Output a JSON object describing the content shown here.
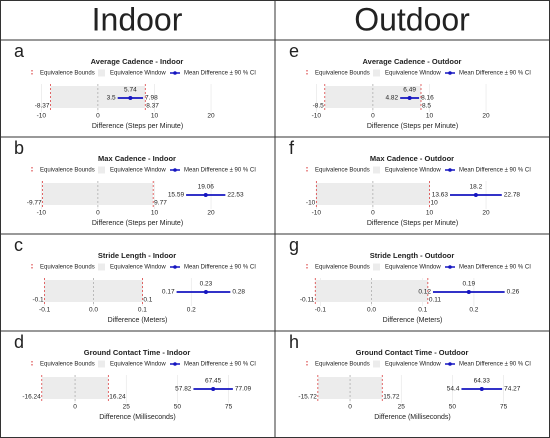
{
  "columns": [
    "Indoor",
    "Outdoor"
  ],
  "legend": [
    "Equivalence Bounds",
    "Equivalence Window",
    "Mean Difference ± 90 % CI"
  ],
  "chart_data": [
    {
      "type": "equivalence",
      "label": "a",
      "title": "Average Cadence - Indoor",
      "xlabel": "Difference (Steps per Minute)",
      "bounds": [
        -8.37,
        8.37
      ],
      "mean": 5.74,
      "ci": [
        3.5,
        7.98
      ],
      "xlim": [
        -12,
        26
      ],
      "xticks": [
        -10,
        0,
        10,
        20
      ],
      "colors": {
        "bounds": "#d62728",
        "ci": "#1515c0",
        "window": "#ececec"
      }
    },
    {
      "type": "equivalence",
      "label": "b",
      "title": "Max Cadence - Indoor",
      "xlabel": "Difference (Steps per Minute)",
      "bounds": [
        -9.77,
        9.77
      ],
      "mean": 19.06,
      "ci": [
        15.59,
        22.53
      ],
      "xlim": [
        -12,
        26
      ],
      "xticks": [
        -10,
        0,
        10,
        20
      ],
      "colors": {
        "bounds": "#d62728",
        "ci": "#1515c0",
        "window": "#ececec"
      }
    },
    {
      "type": "equivalence",
      "label": "c",
      "title": "Stride Length - Indoor",
      "xlabel": "Difference (Meters)",
      "bounds": [
        -0.1,
        0.1
      ],
      "mean": 0.23,
      "ci": [
        0.17,
        0.28
      ],
      "xlim": [
        -0.13,
        0.31
      ],
      "xticks": [
        -0.1,
        {
          "value": 0,
          "label": "0.0"
        },
        0.1,
        0.2
      ],
      "colors": {
        "bounds": "#d62728",
        "ci": "#1515c0",
        "window": "#ececec"
      }
    },
    {
      "type": "equivalence",
      "label": "d",
      "title": "Ground Contact Time - Indoor",
      "xlabel": "Difference (Milliseconds)",
      "bounds": [
        -16.24,
        16.24
      ],
      "mean": 67.45,
      "ci": [
        57.82,
        77.09
      ],
      "xlim": [
        -22,
        83
      ],
      "xticks": [
        0,
        25,
        50,
        75
      ],
      "colors": {
        "bounds": "#d62728",
        "ci": "#1515c0",
        "window": "#ececec"
      }
    },
    {
      "type": "equivalence",
      "label": "e",
      "title": "Average Cadence - Outdoor",
      "xlabel": "Difference (Steps per Minute)",
      "bounds": [
        -8.5,
        8.5
      ],
      "mean": 6.49,
      "ci": [
        4.82,
        8.16
      ],
      "xlim": [
        -12,
        26
      ],
      "xticks": [
        -10,
        0,
        10,
        20
      ],
      "colors": {
        "bounds": "#d62728",
        "ci": "#1515c0",
        "window": "#ececec"
      }
    },
    {
      "type": "equivalence",
      "label": "f",
      "title": "Max Cadence - Outdoor",
      "xlabel": "Difference (Steps per Minute)",
      "bounds": [
        -10,
        10
      ],
      "mean": 18.2,
      "ci": [
        13.63,
        22.78
      ],
      "xlim": [
        -12,
        26
      ],
      "xticks": [
        -10,
        0,
        10,
        20
      ],
      "colors": {
        "bounds": "#d62728",
        "ci": "#1515c0",
        "window": "#ececec"
      }
    },
    {
      "type": "equivalence",
      "label": "g",
      "title": "Stride Length - Outdoor",
      "xlabel": "Difference (Meters)",
      "bounds": [
        -0.11,
        0.11
      ],
      "mean": 0.19,
      "ci": [
        0.12,
        0.26
      ],
      "xlim": [
        -0.13,
        0.29
      ],
      "xticks": [
        -0.1,
        {
          "value": 0,
          "label": "0.0"
        },
        0.1,
        0.2
      ],
      "colors": {
        "bounds": "#d62728",
        "ci": "#1515c0",
        "window": "#ececec"
      }
    },
    {
      "type": "equivalence",
      "label": "h",
      "title": "Ground Contact Time - Outdoor",
      "xlabel": "Difference (Milliseconds)",
      "bounds": [
        -15.72,
        15.72
      ],
      "mean": 64.33,
      "ci": [
        54.4,
        74.27
      ],
      "xlim": [
        -22,
        83
      ],
      "xticks": [
        0,
        25,
        50,
        75
      ],
      "colors": {
        "bounds": "#d62728",
        "ci": "#1515c0",
        "window": "#ececec"
      }
    }
  ]
}
